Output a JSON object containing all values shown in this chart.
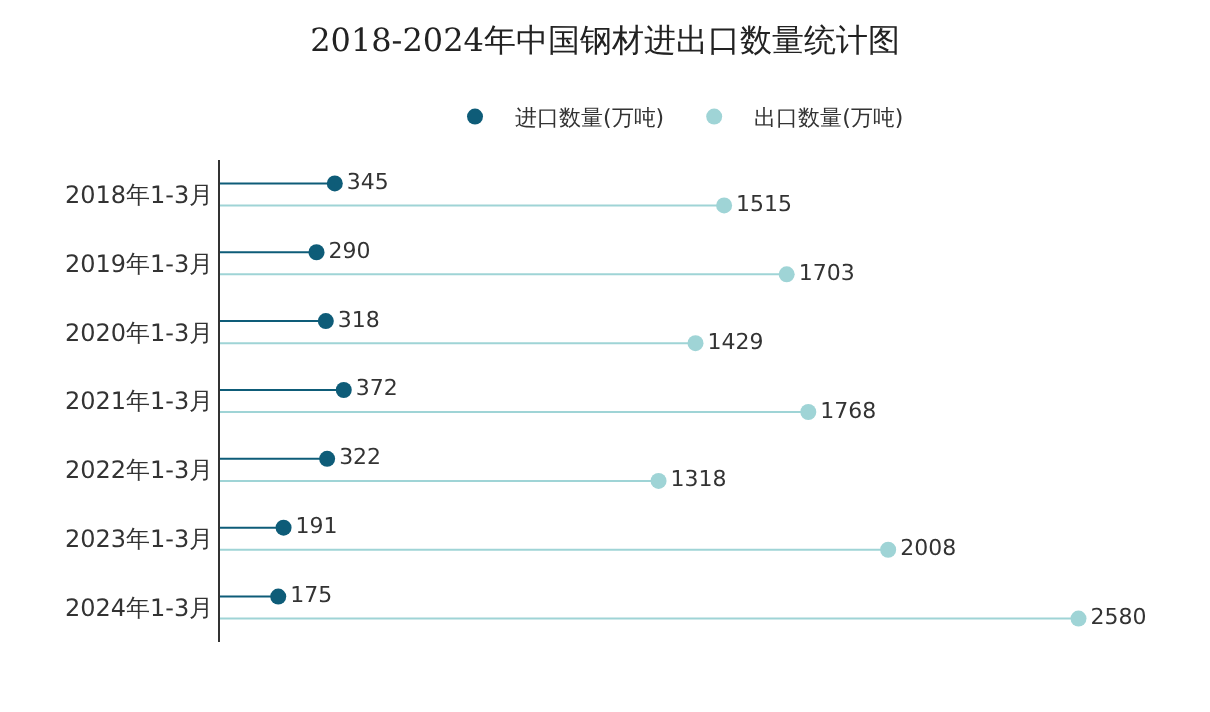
{
  "chart_data": {
    "type": "lollipop",
    "orientation": "horizontal",
    "title": "2018-2024年中国钢材进出口数量统计图",
    "categories": [
      "2018年1-3月",
      "2019年1-3月",
      "2020年1-3月",
      "2021年1-3月",
      "2022年1-3月",
      "2023年1-3月",
      "2024年1-3月"
    ],
    "series": [
      {
        "name": "进口数量(万吨)",
        "color": "#0e5c78",
        "values": [
          345,
          290,
          318,
          372,
          322,
          191,
          175
        ]
      },
      {
        "name": "出口数量(万吨)",
        "color": "#9fd4d6",
        "values": [
          1515,
          1703,
          1429,
          1768,
          1318,
          2008,
          2580
        ]
      }
    ],
    "data_labels": true,
    "legend": "top",
    "marker": "circle"
  }
}
